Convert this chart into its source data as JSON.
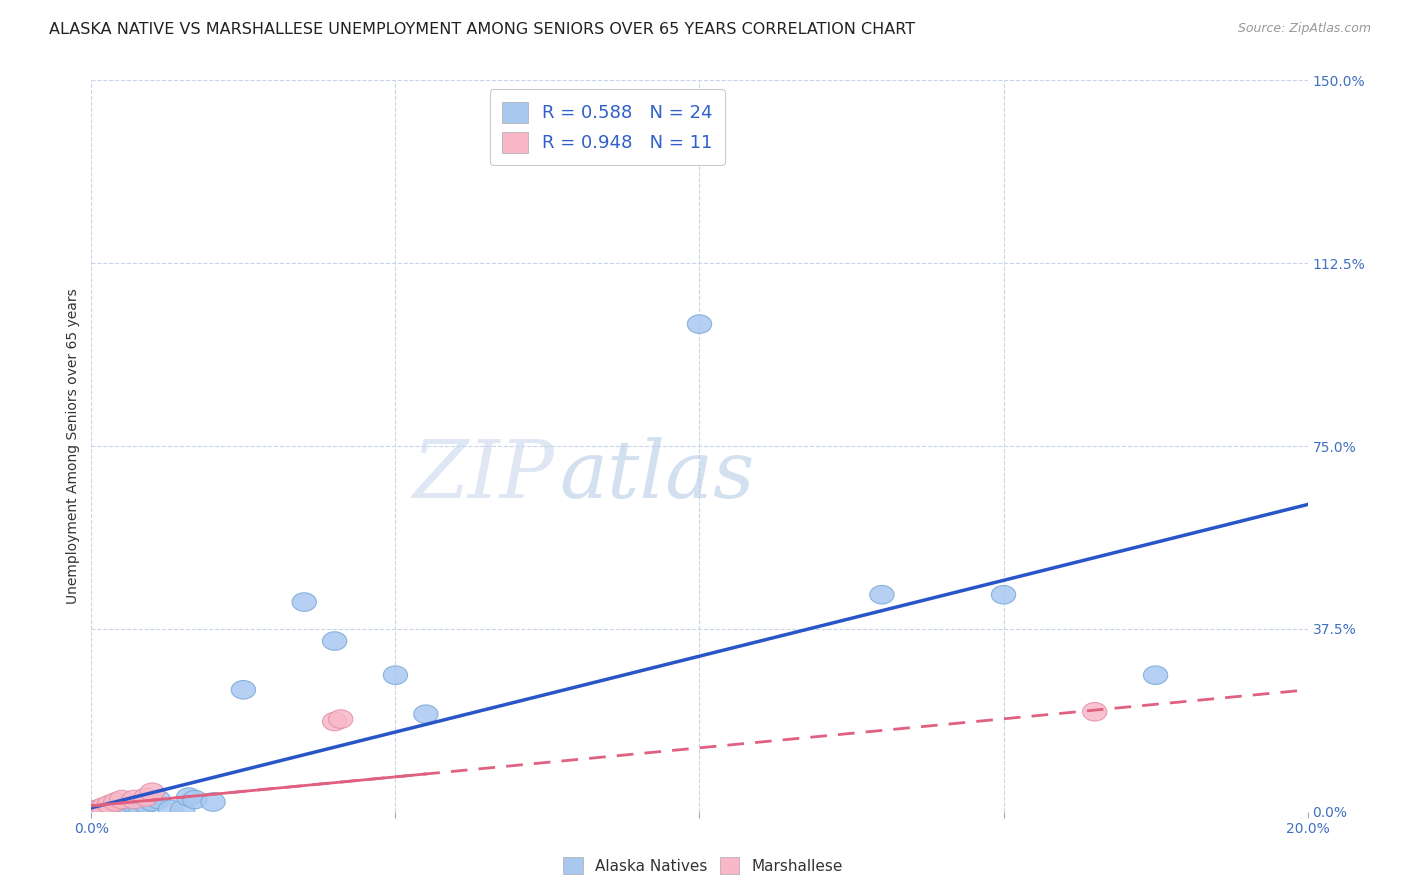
{
  "title": "ALASKA NATIVE VS MARSHALLESE UNEMPLOYMENT AMONG SENIORS OVER 65 YEARS CORRELATION CHART",
  "source": "Source: ZipAtlas.com",
  "ylabel": "Unemployment Among Seniors over 65 years",
  "xlim": [
    0.0,
    0.2
  ],
  "ylim": [
    0.0,
    1.5
  ],
  "xticks": [
    0.0,
    0.05,
    0.1,
    0.15,
    0.2
  ],
  "yticks": [
    0.0,
    0.375,
    0.75,
    1.125,
    1.5
  ],
  "ytick_labels_right": [
    "0.0%",
    "37.5%",
    "75.0%",
    "112.5%",
    "150.0%"
  ],
  "alaska_color": "#a8c8f0",
  "alaska_edge_color": "#7aa8d8",
  "marshallese_color": "#f8b8c8",
  "marshallese_edge_color": "#e090a8",
  "alaska_line_color": "#2855c8",
  "marshallese_line_color": "#e06080",
  "alaska_r": 0.588,
  "alaska_n": 24,
  "marshallese_r": 0.948,
  "marshallese_n": 11,
  "alaska_scatter_x": [
    0.001,
    0.002,
    0.003,
    0.005,
    0.006,
    0.007,
    0.008,
    0.009,
    0.01,
    0.011,
    0.013,
    0.015,
    0.016,
    0.017,
    0.02,
    0.025,
    0.035,
    0.04,
    0.05,
    0.055,
    0.1,
    0.13,
    0.15,
    0.175
  ],
  "alaska_scatter_y": [
    0.005,
    0.005,
    0.008,
    0.01,
    0.012,
    0.015,
    0.01,
    0.015,
    0.02,
    0.025,
    0.005,
    0.005,
    0.03,
    0.025,
    0.02,
    0.25,
    0.43,
    0.35,
    0.28,
    0.2,
    1.0,
    0.445,
    0.445,
    0.28
  ],
  "marshallese_scatter_x": [
    0.001,
    0.002,
    0.003,
    0.004,
    0.005,
    0.007,
    0.009,
    0.01,
    0.04,
    0.041,
    0.165
  ],
  "marshallese_scatter_y": [
    0.005,
    0.01,
    0.015,
    0.02,
    0.025,
    0.025,
    0.03,
    0.04,
    0.185,
    0.19,
    0.205
  ],
  "alaska_line_x0": 0.0,
  "alaska_line_y0": 0.008,
  "alaska_line_x1": 0.2,
  "alaska_line_y1": 0.63,
  "marshallese_line_x0": 0.0,
  "marshallese_line_y0": 0.012,
  "marshallese_line_x1": 0.2,
  "marshallese_line_y1": 0.25,
  "watermark_zip": "ZIP",
  "watermark_atlas": "atlas",
  "background_color": "#ffffff",
  "grid_color": "#c8d4e8",
  "title_fontsize": 11.5,
  "axis_label_fontsize": 10,
  "tick_fontsize": 10,
  "legend_fontsize": 13
}
